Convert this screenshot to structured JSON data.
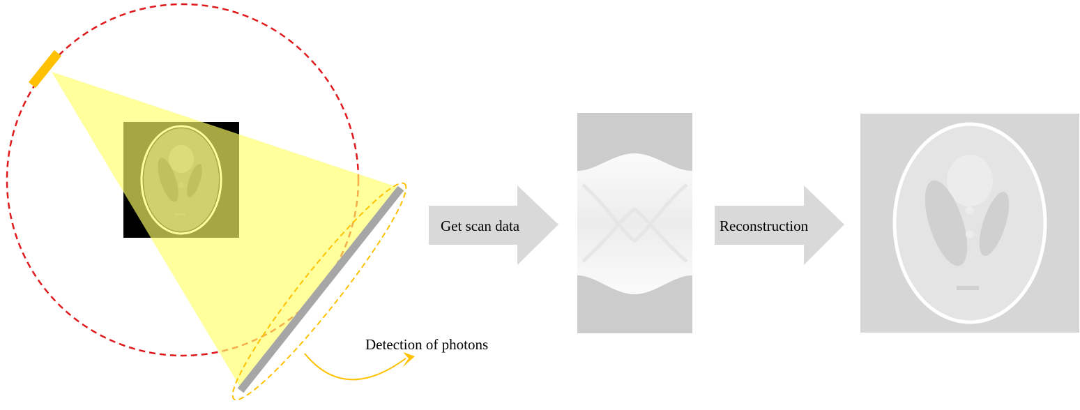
{
  "labels": {
    "detection": "Detection of photons",
    "arrow_scan": "Get scan data",
    "arrow_recon": "Reconstruction"
  },
  "colors": {
    "orbit": "#e0191c",
    "source": "#ffc000",
    "beam": "#ffff66",
    "detector": "#a6a6a6",
    "detector_outline": "#ffc000",
    "annotation_arrow": "#ffc000",
    "phantom_background": "#000000",
    "process_arrow": "#d9d9d9",
    "sinogram_background": "#cccccc",
    "reconstruction_background": "#d6d6d6"
  }
}
